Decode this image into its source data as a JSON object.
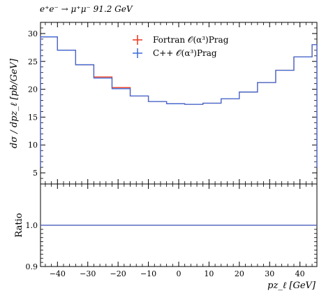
{
  "chart_data": {
    "type": "line",
    "title": "e⁺e⁻ → μ⁺μ⁻ 91.2 GeV",
    "top_panel": {
      "ylabel": "dσ / dpz_ℓ [pb/GeV]",
      "ylim": [
        3,
        32
      ],
      "yticks": [
        5,
        10,
        15,
        20,
        25,
        30
      ],
      "legend_position": "top-center",
      "series": [
        {
          "name": "Fortran 𝒪(α³)Prag",
          "color": "#e8351d",
          "edges": [
            -45.6,
            -40,
            -34,
            -28,
            -22,
            -16,
            -10,
            -4,
            2,
            8,
            14,
            20,
            26,
            32,
            38,
            44,
            45.6
          ],
          "values": [
            29.4,
            27.0,
            24.4,
            22.2,
            20.3,
            18.8,
            17.8,
            17.4,
            17.3,
            17.5,
            18.3,
            19.5,
            21.2,
            23.4,
            25.8,
            28.0
          ]
        },
        {
          "name": "C++ 𝒪(α³)Prag",
          "color": "#3b6bd8",
          "edges": [
            -45.6,
            -40,
            -34,
            -28,
            -22,
            -16,
            -10,
            -4,
            2,
            8,
            14,
            20,
            26,
            32,
            38,
            44,
            45.6
          ],
          "values": [
            29.4,
            27.0,
            24.4,
            22.0,
            20.1,
            18.8,
            17.8,
            17.4,
            17.3,
            17.5,
            18.3,
            19.5,
            21.2,
            23.4,
            25.8,
            28.0
          ]
        }
      ],
      "edge_drop_to": 6.0
    },
    "ratio_panel": {
      "ylabel": "Ratio",
      "ylim": [
        0.9,
        1.1
      ],
      "yticks": [
        0.9,
        1.0
      ],
      "ytick_labels": [
        "0.9",
        "1.0"
      ],
      "ratio_value": 1.0
    },
    "xlabel": "pz_ℓ [GeV]",
    "xlim": [
      -45.6,
      45.6
    ],
    "xticks": [
      -40,
      -30,
      -20,
      -10,
      0,
      10,
      20,
      30,
      40
    ],
    "xtick_labels": [
      "−40",
      "−30",
      "−20",
      "−10",
      "0",
      "10",
      "20",
      "30",
      "40"
    ],
    "grid": false
  }
}
